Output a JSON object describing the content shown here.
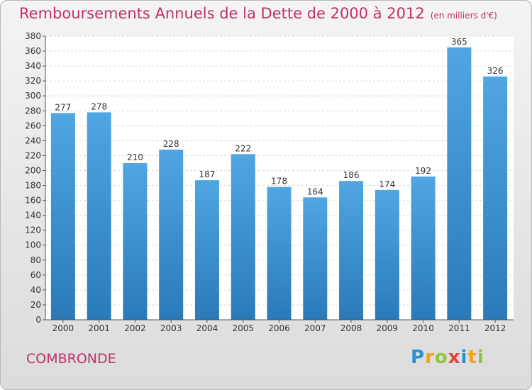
{
  "title_main": "Remboursements Annuels de la Dette de 2000 à 2012",
  "title_unit": "(en milliers d'€)",
  "place_name": "COMBRONDE",
  "logo": {
    "text": "Proxiti",
    "letters": [
      "P",
      "r",
      "o",
      "x",
      "i",
      "t",
      "i"
    ],
    "colors": [
      "#2f8fd0",
      "#f2a21b",
      "#8dc63f",
      "#e0463c"
    ]
  },
  "chart_data": {
    "type": "bar",
    "categories": [
      "2000",
      "2001",
      "2002",
      "2003",
      "2004",
      "2005",
      "2006",
      "2007",
      "2008",
      "2009",
      "2010",
      "2011",
      "2012"
    ],
    "values": [
      277,
      278,
      210,
      228,
      187,
      222,
      178,
      164,
      186,
      174,
      192,
      365,
      326
    ],
    "yticks": [
      0,
      20,
      40,
      60,
      80,
      100,
      120,
      140,
      160,
      180,
      200,
      220,
      240,
      260,
      280,
      300,
      320,
      340,
      360,
      380
    ],
    "ylim": [
      0,
      380
    ],
    "grid": true,
    "bar_color": "#4fa6e2",
    "bar_color_dark": "#2a7ab9"
  }
}
